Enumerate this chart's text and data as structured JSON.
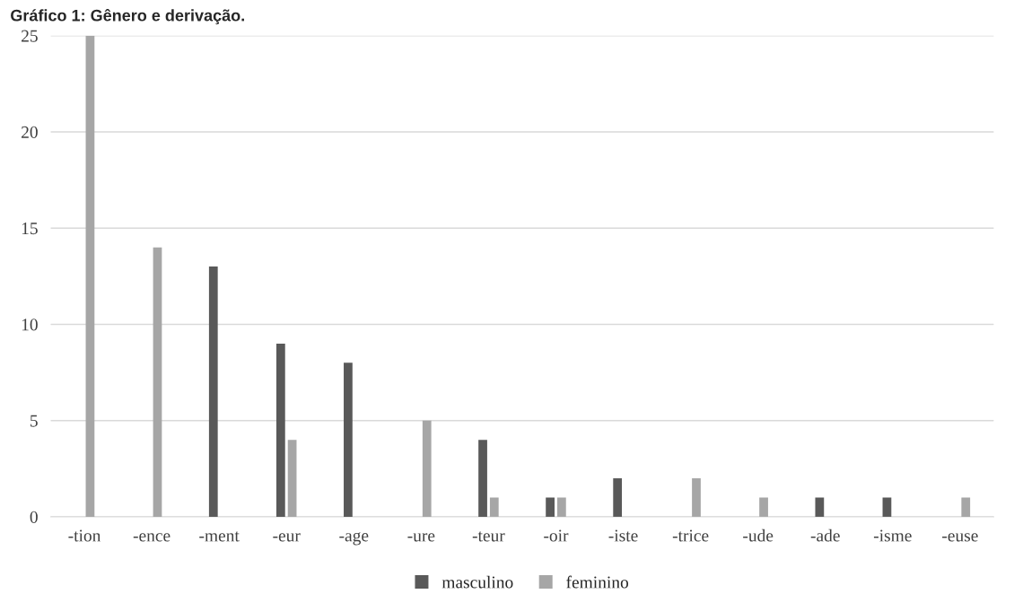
{
  "chart_data": {
    "type": "bar",
    "title": "Gráfico 1: Gênero e derivação.",
    "categories": [
      "-tion",
      "-ence",
      "-ment",
      "-eur",
      "-age",
      "-ure",
      "-teur",
      "-oir",
      "-iste",
      "-trice",
      "-ude",
      "-ade",
      "-isme",
      "-euse"
    ],
    "series": [
      {
        "name": "masculino",
        "color": "#595959",
        "values": [
          0,
          0,
          13,
          9,
          8,
          0,
          4,
          1,
          2,
          0,
          0,
          1,
          1,
          0
        ]
      },
      {
        "name": "feminino",
        "color": "#a6a6a6",
        "values": [
          25,
          14,
          0,
          4,
          0,
          5,
          1,
          1,
          0,
          2,
          1,
          0,
          0,
          1
        ]
      }
    ],
    "ylim": [
      0,
      25
    ],
    "yticks": [
      0,
      5,
      10,
      15,
      20,
      25
    ],
    "grid": "y",
    "legend": "bottom"
  }
}
